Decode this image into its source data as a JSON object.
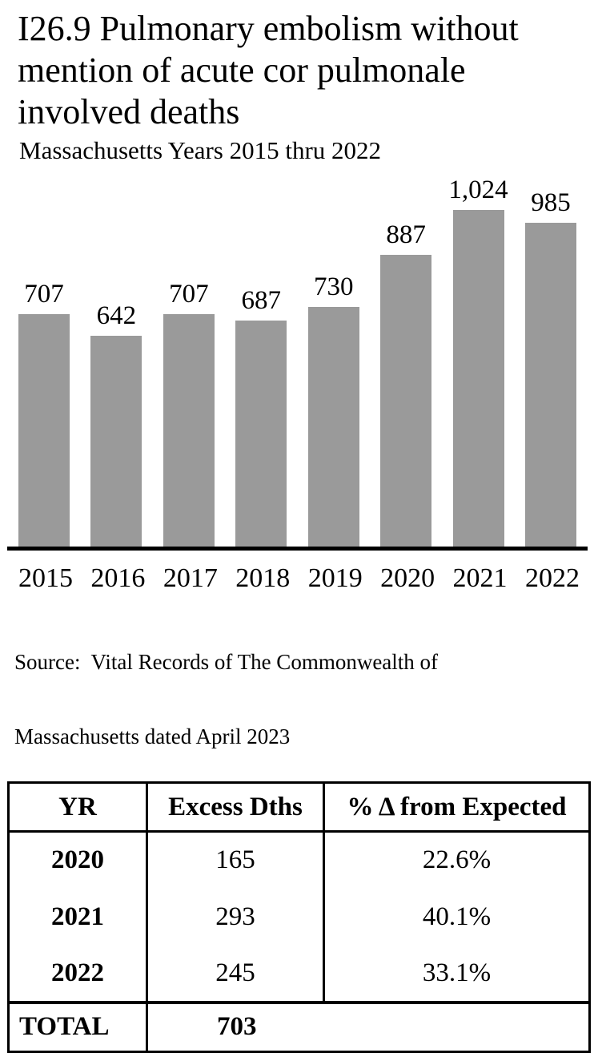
{
  "header": {
    "title_lines": [
      "I26.9 Pulmonary embolism without",
      "mention of acute cor pulmonale",
      "involved deaths"
    ],
    "subtitle": "Massachusetts Years 2015 thru 2022"
  },
  "chart_data": {
    "type": "bar",
    "title": "I26.9 Pulmonary embolism without mention of acute cor pulmonale involved deaths",
    "subtitle": "Massachusetts Years 2015 thru 2022",
    "categories": [
      "2015",
      "2016",
      "2017",
      "2018",
      "2019",
      "2020",
      "2021",
      "2022"
    ],
    "values": [
      707,
      642,
      707,
      687,
      730,
      887,
      1024,
      985
    ],
    "value_labels": [
      "707",
      "642",
      "707",
      "687",
      "730",
      "887",
      "1,024",
      "985"
    ],
    "bar_color": "#9a9a9a",
    "axis_color": "#000000",
    "ylim": [
      0,
      1024
    ],
    "grid": false,
    "legend": false,
    "data_labels_position": "above-bars"
  },
  "source_note": {
    "lines": [
      "Source:  Vital Records of The Commonwealth of",
      "Massachusetts dated April 2023"
    ]
  },
  "table": {
    "headers": [
      "YR",
      "Excess Dths",
      "% Δ from Expected"
    ],
    "rows": [
      [
        "2020",
        "165",
        "22.6%"
      ],
      [
        "2021",
        "293",
        "40.1%"
      ],
      [
        "2022",
        "245",
        "33.1%"
      ]
    ],
    "total_label": "TOTAL",
    "total_value": "703"
  }
}
